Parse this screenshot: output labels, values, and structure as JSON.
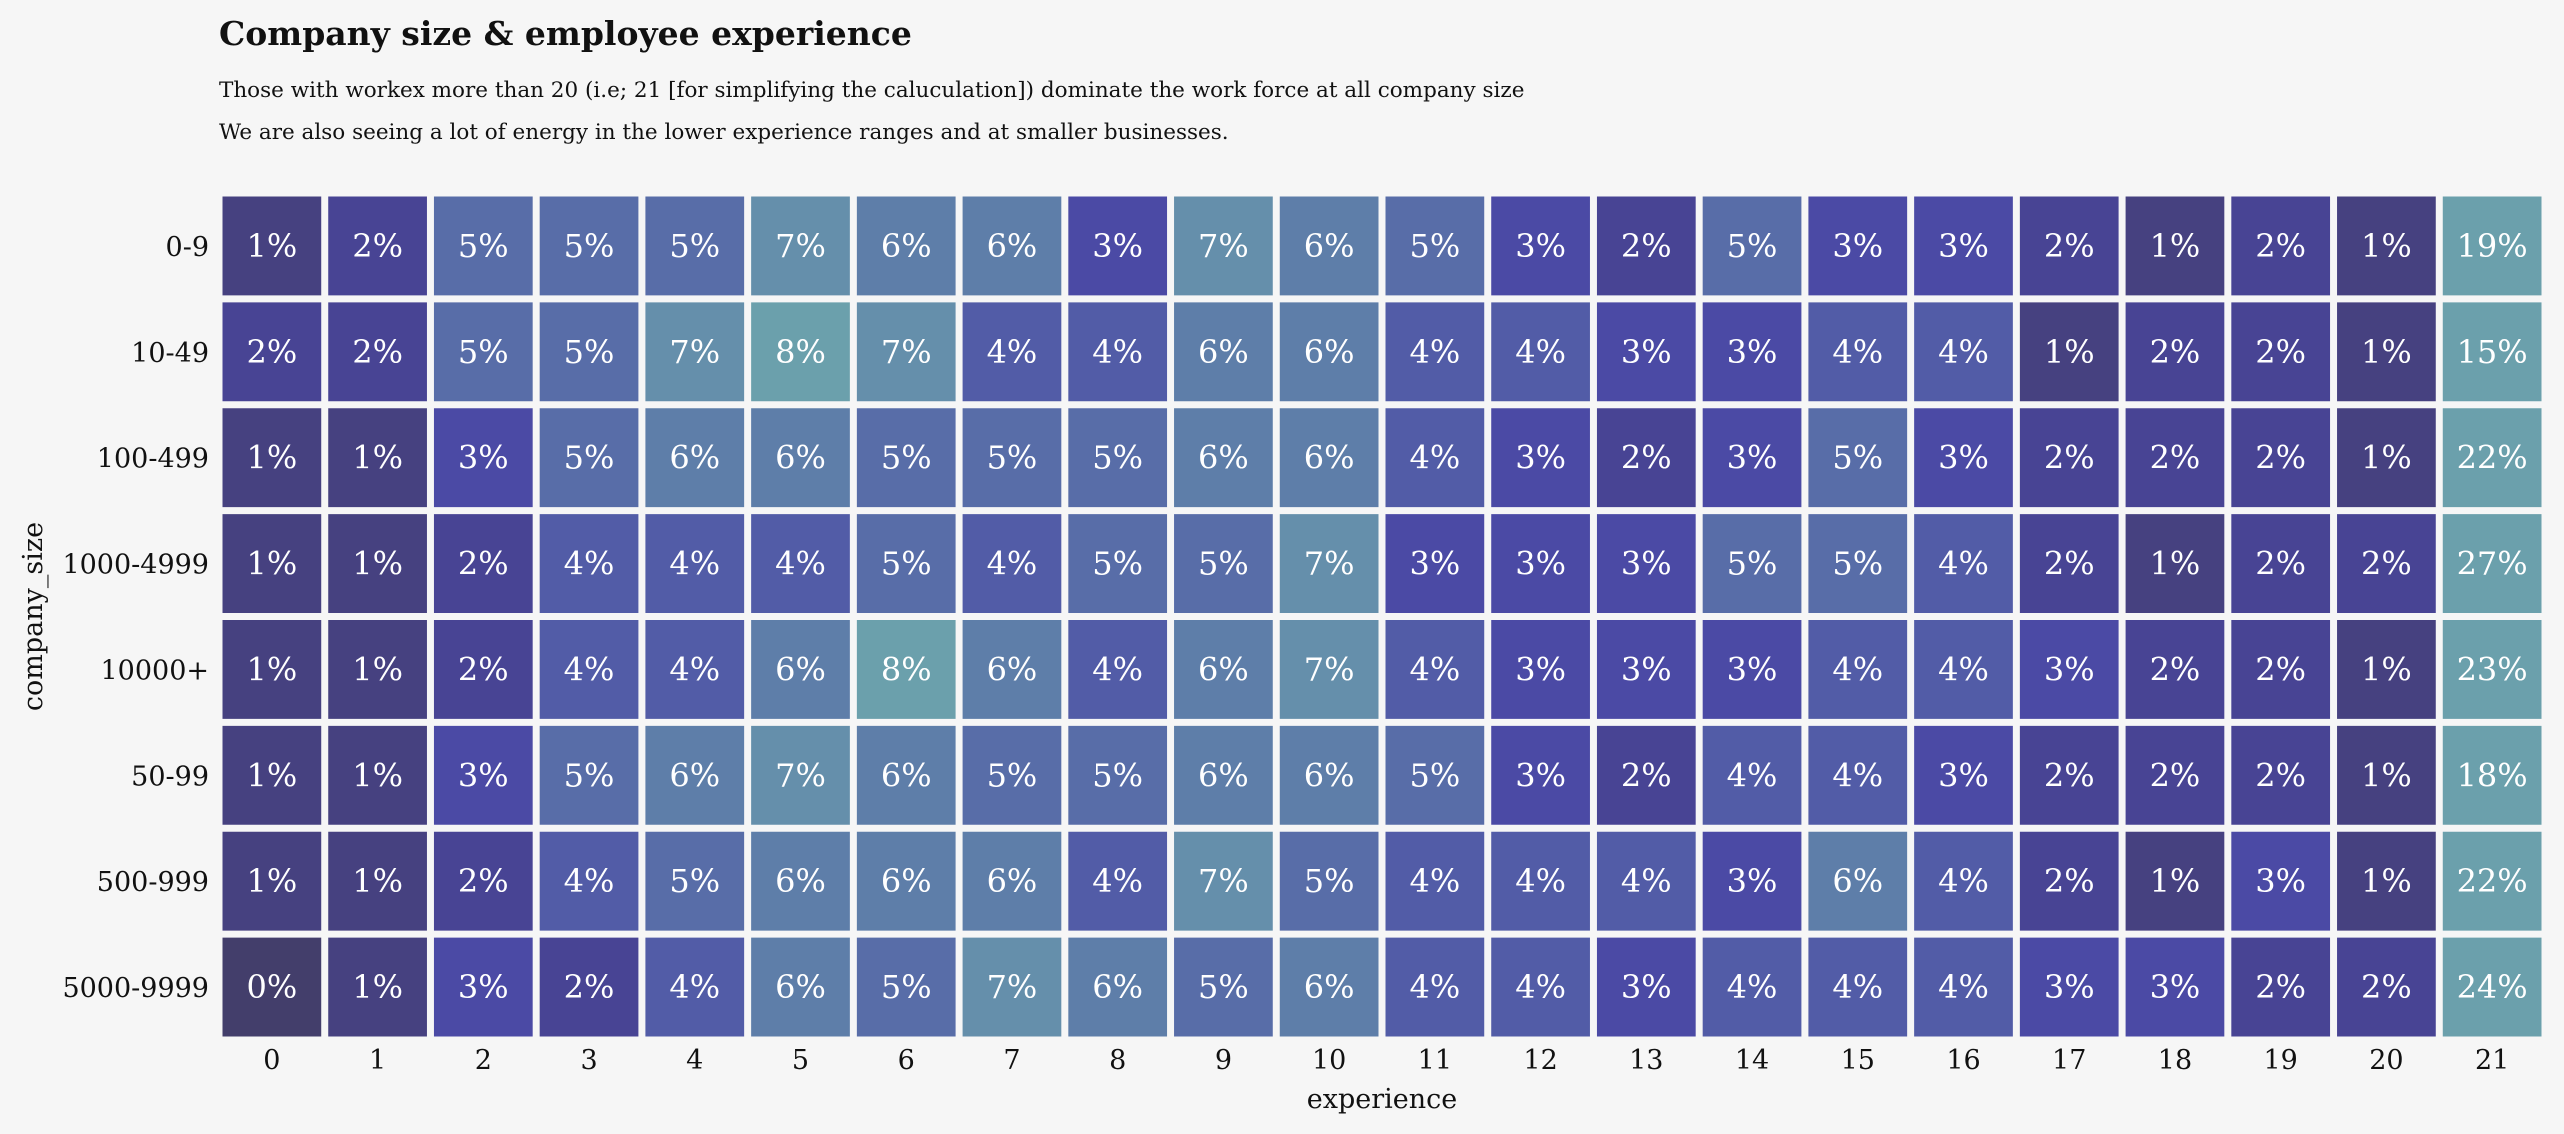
{
  "chart_data": {
    "type": "heatmap",
    "title": "Company size & employee experience",
    "subtitle_lines": [
      "Those with workex more than 20 (i.e; 21 [for simplifying the caluculation]) dominate the work force at all company size",
      "We are also seeing a lot of energy in the lower experience ranges and at smaller businesses."
    ],
    "xlabel": "experience",
    "ylabel": "company_size",
    "x": [
      "0",
      "1",
      "2",
      "3",
      "4",
      "5",
      "6",
      "7",
      "8",
      "9",
      "10",
      "11",
      "12",
      "13",
      "14",
      "15",
      "16",
      "17",
      "18",
      "19",
      "20",
      "21"
    ],
    "y": [
      "0-9",
      "10-49",
      "100-499",
      "1000-4999",
      "10000+",
      "50-99",
      "500-999",
      "5000-9999"
    ],
    "values": [
      [
        1,
        2,
        5,
        5,
        5,
        7,
        6,
        6,
        3,
        7,
        6,
        5,
        3,
        2,
        5,
        3,
        3,
        2,
        1,
        2,
        1,
        19
      ],
      [
        2,
        2,
        5,
        5,
        7,
        8,
        7,
        4,
        4,
        6,
        6,
        4,
        4,
        3,
        3,
        4,
        4,
        1,
        2,
        2,
        1,
        15
      ],
      [
        1,
        1,
        3,
        5,
        6,
        6,
        5,
        5,
        5,
        6,
        6,
        4,
        3,
        2,
        3,
        5,
        3,
        2,
        2,
        2,
        1,
        22
      ],
      [
        1,
        1,
        2,
        4,
        4,
        4,
        5,
        4,
        5,
        5,
        7,
        3,
        3,
        3,
        5,
        5,
        4,
        2,
        1,
        2,
        2,
        27
      ],
      [
        1,
        1,
        2,
        4,
        4,
        6,
        8,
        6,
        4,
        6,
        7,
        4,
        3,
        3,
        3,
        4,
        4,
        3,
        2,
        2,
        1,
        23
      ],
      [
        1,
        1,
        3,
        5,
        6,
        7,
        6,
        5,
        5,
        6,
        6,
        5,
        3,
        2,
        4,
        4,
        3,
        2,
        2,
        2,
        1,
        18
      ],
      [
        1,
        1,
        2,
        4,
        5,
        6,
        6,
        6,
        4,
        7,
        5,
        4,
        4,
        4,
        3,
        6,
        4,
        2,
        1,
        3,
        1,
        22
      ],
      [
        0,
        1,
        3,
        2,
        4,
        6,
        5,
        7,
        6,
        5,
        6,
        4,
        4,
        3,
        4,
        4,
        4,
        3,
        3,
        2,
        2,
        24
      ]
    ],
    "value_suffix": "%",
    "colors": {
      "low": "#433e6b",
      "mid": "#4a47a5",
      "high": "#6ba0ac",
      "cell_text": "#ffffff",
      "cell_border": "#ffffff",
      "background": "#f6f6f6"
    }
  }
}
